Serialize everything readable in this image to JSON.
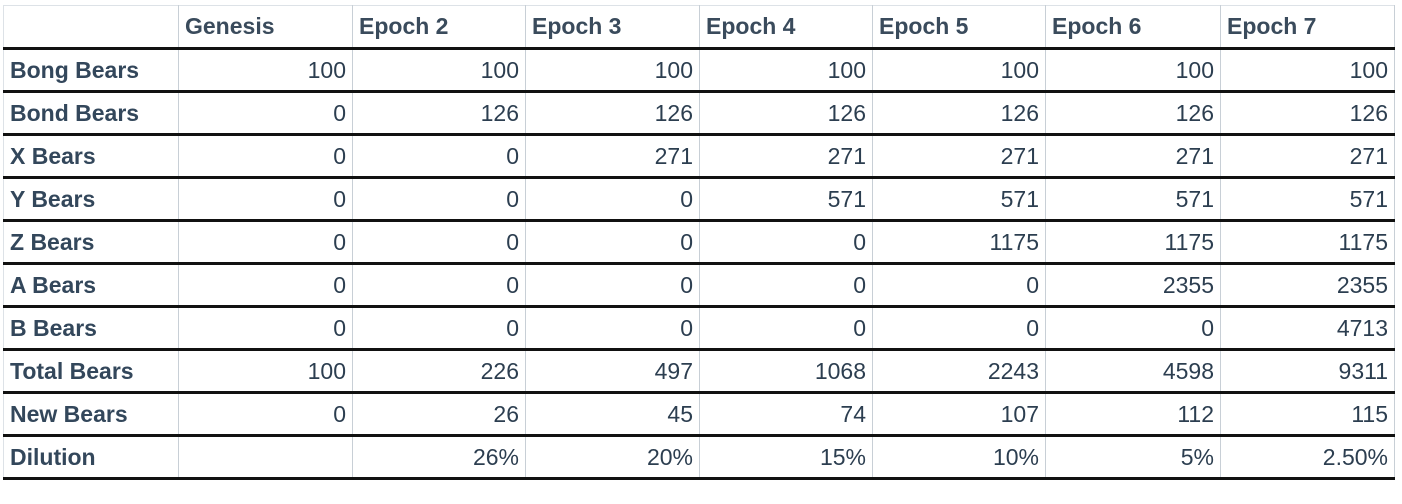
{
  "chart_data": {
    "type": "table",
    "columns": [
      "",
      "Genesis",
      "Epoch 2",
      "Epoch 3",
      "Epoch 4",
      "Epoch 5",
      "Epoch 6",
      "Epoch 7"
    ],
    "rows": [
      {
        "label": "Bong Bears",
        "values": [
          "100",
          "100",
          "100",
          "100",
          "100",
          "100",
          "100"
        ]
      },
      {
        "label": "Bond Bears",
        "values": [
          "0",
          "126",
          "126",
          "126",
          "126",
          "126",
          "126"
        ]
      },
      {
        "label": "X Bears",
        "values": [
          "0",
          "0",
          "271",
          "271",
          "271",
          "271",
          "271"
        ]
      },
      {
        "label": "Y Bears",
        "values": [
          "0",
          "0",
          "0",
          "571",
          "571",
          "571",
          "571"
        ]
      },
      {
        "label": "Z Bears",
        "values": [
          "0",
          "0",
          "0",
          "0",
          "1175",
          "1175",
          "1175"
        ]
      },
      {
        "label": "A Bears",
        "values": [
          "0",
          "0",
          "0",
          "0",
          "0",
          "2355",
          "2355"
        ]
      },
      {
        "label": "B Bears",
        "values": [
          "0",
          "0",
          "0",
          "0",
          "0",
          "0",
          "4713"
        ]
      },
      {
        "label": "Total Bears",
        "values": [
          "100",
          "226",
          "497",
          "1068",
          "2243",
          "4598",
          "9311"
        ]
      },
      {
        "label": "New Bears",
        "values": [
          "0",
          "26",
          "45",
          "74",
          "107",
          "112",
          "115"
        ]
      },
      {
        "label": "Dilution",
        "values": [
          "",
          "26%",
          "20%",
          "15%",
          "10%",
          "5%",
          "2.50%"
        ]
      }
    ]
  },
  "colors": {
    "text": "#2c3e50",
    "header_text": "#3a4b5c",
    "row_separator": "#111111",
    "grid": "#c8cfd6"
  }
}
